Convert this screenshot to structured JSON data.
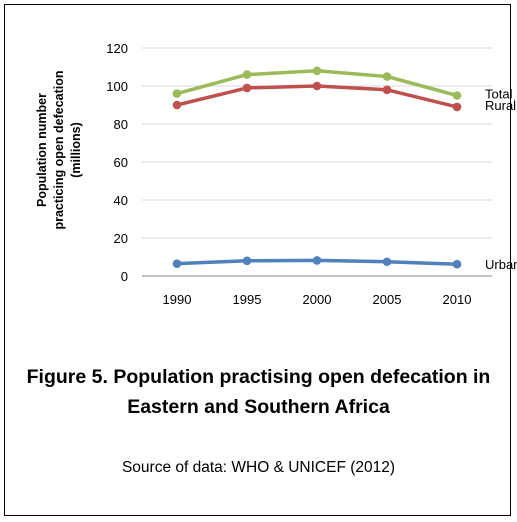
{
  "figure": {
    "title": "Figure 5. Population practising open defecation in Eastern and Southern Africa",
    "source": "Source of data: WHO & UNICEF (2012)"
  },
  "chart_data": {
    "type": "line",
    "x": [
      1990,
      1995,
      2000,
      2005,
      2010
    ],
    "series": [
      {
        "name": "Total",
        "color": "#9bbb59",
        "values": [
          96,
          106,
          108,
          105,
          95
        ]
      },
      {
        "name": "Rural",
        "color": "#c0504d",
        "values": [
          90,
          99,
          100,
          98,
          89
        ]
      },
      {
        "name": "Urban",
        "color": "#4f81bd",
        "values": [
          6.5,
          8,
          8.2,
          7.5,
          6.2
        ]
      }
    ],
    "ylabel_lines": [
      "Population number",
      "practicing open defecation",
      "(millions)"
    ],
    "xlabel": "",
    "ylim": [
      0,
      120
    ],
    "yticks": [
      0,
      20,
      40,
      60,
      80,
      100,
      120
    ],
    "xticks": [
      "1990",
      "1995",
      "2000",
      "2005",
      "2010"
    ],
    "grid": true,
    "legend": "series labels at right end of lines"
  }
}
